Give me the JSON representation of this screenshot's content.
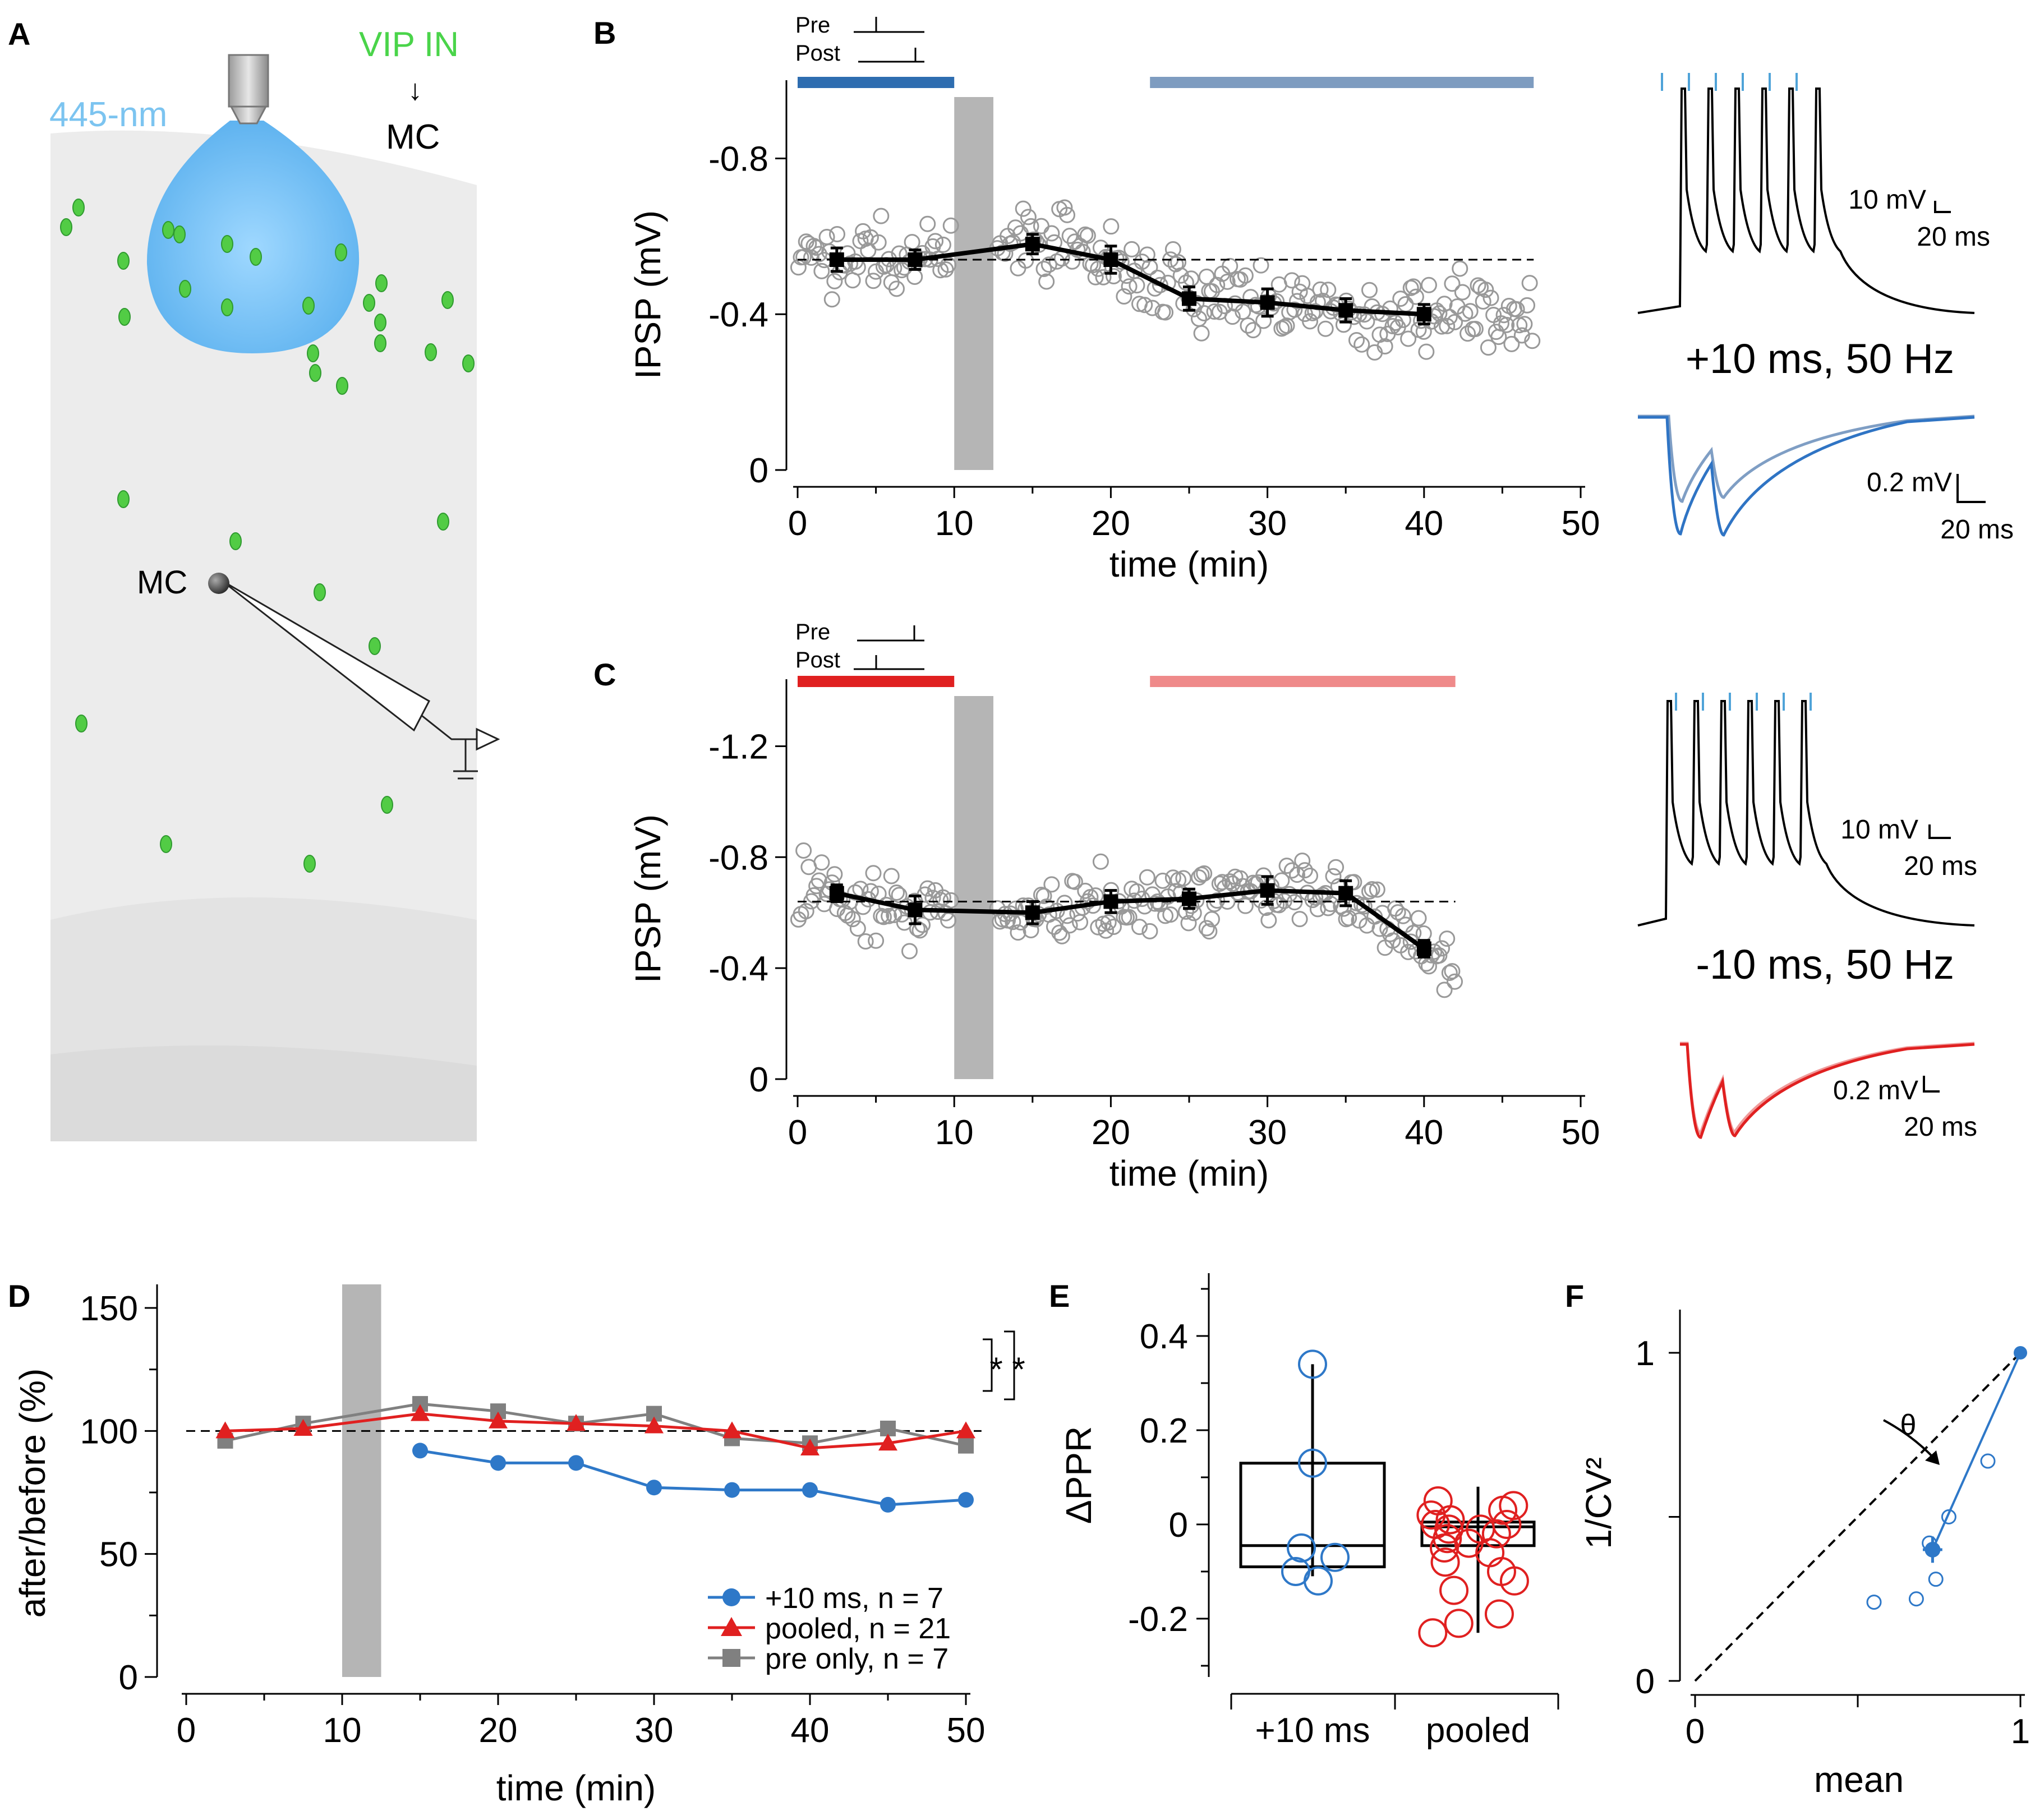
{
  "panels": {
    "A": {
      "letter": "A",
      "laser_label": "445-nm",
      "vip_label": "VIP IN",
      "arrow_glyph": "↓",
      "target_label": "MC",
      "cell_label": "MC",
      "colors": {
        "laser": "#7cc4f0",
        "vip": "#4ad44a",
        "tissue": "#ececec"
      }
    },
    "B": {
      "letter": "B",
      "timing_pre": "Pre",
      "timing_post": "Post",
      "protocol": "+10 ms, 50 Hz",
      "scale_top": {
        "y": "10 mV",
        "x": "20 ms"
      },
      "scale_bottom": {
        "y": "0.2 mV",
        "x": "20 ms"
      }
    },
    "C": {
      "letter": "C",
      "timing_pre": "Pre",
      "timing_post": "Post",
      "protocol": "-10 ms, 50 Hz",
      "scale_top": {
        "y": "10 mV",
        "x": "20 ms"
      },
      "scale_bottom": {
        "y": "0.2 mV",
        "x": "20 ms"
      }
    },
    "D": {
      "letter": "D",
      "significance": [
        "*",
        "*"
      ]
    },
    "E": {
      "letter": "E"
    },
    "F": {
      "letter": "F",
      "angle_label": "θ"
    }
  },
  "chart_data": [
    {
      "id": "B",
      "type": "scatter",
      "xlabel": "time (min)",
      "ylabel": "IPSP (mV)",
      "xlim": [
        0,
        50
      ],
      "ylim": [
        0,
        -0.9
      ],
      "y_inverted": true,
      "xticks": [
        0,
        10,
        20,
        30,
        40,
        50
      ],
      "yticks": [
        0,
        -0.4,
        -0.8
      ],
      "xtick_labels": [
        "0",
        "10",
        "20",
        "30",
        "40",
        "50"
      ],
      "ytick_labels": [
        "0",
        "-0.4",
        "-0.8"
      ],
      "baseline": -0.54,
      "induction_window": [
        10,
        12.5
      ],
      "baseline_bar": {
        "x": [
          0,
          10
        ],
        "color": "#2e6db0"
      },
      "after_bar": {
        "x": [
          22.5,
          47
        ],
        "color": "#7e9cc0"
      },
      "means": {
        "x": [
          2.5,
          7.5,
          15,
          20,
          25,
          30,
          35,
          40
        ],
        "y": [
          -0.54,
          -0.54,
          -0.58,
          -0.54,
          -0.44,
          -0.43,
          -0.41,
          -0.4
        ],
        "err": [
          0.03,
          0.025,
          0.025,
          0.035,
          0.03,
          0.035,
          0.03,
          0.025
        ]
      }
    },
    {
      "id": "C",
      "type": "scatter",
      "xlabel": "time (min)",
      "ylabel": "IPSP (mV)",
      "xlim": [
        0,
        50
      ],
      "ylim": [
        0,
        -1.3
      ],
      "y_inverted": true,
      "xticks": [
        0,
        10,
        20,
        30,
        40,
        50
      ],
      "yticks": [
        0,
        -0.4,
        -0.8,
        -1.2
      ],
      "xtick_labels": [
        "0",
        "10",
        "20",
        "30",
        "40",
        "50"
      ],
      "ytick_labels": [
        "0",
        "-0.4",
        "-0.8",
        "-1.2"
      ],
      "baseline": -0.64,
      "induction_window": [
        10,
        12.5
      ],
      "baseline_bar": {
        "x": [
          0,
          10
        ],
        "color": "#e02020"
      },
      "after_bar": {
        "x": [
          22.5,
          42
        ],
        "color": "#ef8a8a"
      },
      "means": {
        "x": [
          2.5,
          7.5,
          15,
          20,
          25,
          30,
          35,
          40
        ],
        "y": [
          -0.67,
          -0.61,
          -0.6,
          -0.64,
          -0.65,
          -0.68,
          -0.67,
          -0.47
        ],
        "err": [
          0.03,
          0.05,
          0.04,
          0.04,
          0.035,
          0.05,
          0.045,
          0.03
        ]
      }
    },
    {
      "id": "D",
      "type": "line",
      "xlabel": "time (min)",
      "ylabel": "after/before (%)",
      "xlim": [
        0,
        50
      ],
      "ylim": [
        0,
        150
      ],
      "xticks": [
        0,
        10,
        20,
        30,
        40,
        50
      ],
      "yticks": [
        0,
        50,
        100,
        150
      ],
      "xtick_labels": [
        "0",
        "10",
        "20",
        "30",
        "40",
        "50"
      ],
      "ytick_labels": [
        "0",
        "50",
        "100",
        "150"
      ],
      "baseline": 100,
      "induction_window": [
        10,
        12.5
      ],
      "series": [
        {
          "name": "+10 ms, n = 7",
          "color": "#2e78c8",
          "marker": "circle",
          "x": [
            15,
            20,
            25,
            30,
            35,
            40,
            45,
            50
          ],
          "y": [
            92,
            87,
            87,
            77,
            76,
            76,
            70,
            72
          ]
        },
        {
          "name": "pooled, n = 21",
          "color": "#e02020",
          "marker": "triangle",
          "x": [
            2.5,
            7.5,
            15,
            20,
            25,
            30,
            35,
            40,
            45,
            50
          ],
          "y": [
            100,
            101,
            107,
            104,
            103,
            102,
            100,
            93,
            95,
            100
          ]
        },
        {
          "name": "pre only, n = 7",
          "color": "#808080",
          "marker": "square",
          "x": [
            2.5,
            7.5,
            15,
            20,
            25,
            30,
            35,
            40,
            45,
            50
          ],
          "y": [
            96,
            103,
            111,
            108,
            103,
            107,
            97,
            95,
            101,
            94
          ]
        }
      ]
    },
    {
      "id": "E",
      "type": "box",
      "ylabel": "ΔPPR",
      "ylim": [
        -0.3,
        0.5
      ],
      "yticks": [
        -0.2,
        0,
        0.2,
        0.4
      ],
      "ytick_labels": [
        "-0.2",
        "0",
        "0.2",
        "0.4"
      ],
      "categories": [
        "+10 ms",
        "pooled"
      ],
      "boxes": [
        {
          "name": "+10 ms",
          "color": "#2e78c8",
          "q1": -0.09,
          "median": -0.045,
          "q3": 0.13,
          "whisker_low": -0.11,
          "whisker_high": 0.34,
          "points": [
            0.34,
            0.13,
            -0.05,
            -0.07,
            -0.1,
            -0.12
          ]
        },
        {
          "name": "pooled",
          "color": "#e02020",
          "q1": -0.045,
          "median": -0.005,
          "q3": 0.005,
          "whisker_low": -0.23,
          "whisker_high": 0.08,
          "points": [
            0.05,
            0.04,
            0.03,
            0.02,
            0.01,
            0.0,
            0.0,
            -0.01,
            -0.01,
            -0.02,
            -0.03,
            -0.04,
            -0.05,
            -0.06,
            -0.08,
            -0.1,
            -0.12,
            -0.14,
            -0.19,
            -0.21,
            -0.23
          ]
        }
      ]
    },
    {
      "id": "F",
      "type": "scatter",
      "xlabel": "mean",
      "ylabel": "1/CV²",
      "xlim": [
        0,
        1
      ],
      "ylim": [
        0,
        1
      ],
      "xticks": [
        0,
        1
      ],
      "yticks": [
        0,
        1
      ],
      "xtick_labels": [
        "0",
        "1"
      ],
      "ytick_labels": [
        "0",
        "1"
      ],
      "color": "#2e78c8",
      "points": {
        "x": [
          0.55,
          0.68,
          0.72,
          0.74,
          0.78,
          0.9
        ],
        "y": [
          0.24,
          0.25,
          0.42,
          0.31,
          0.5,
          0.67
        ]
      },
      "mean_point": {
        "x": 0.73,
        "y": 0.4,
        "xerr": 0.03,
        "yerr": 0.04
      },
      "reference": {
        "x": 1,
        "y": 1
      }
    }
  ]
}
